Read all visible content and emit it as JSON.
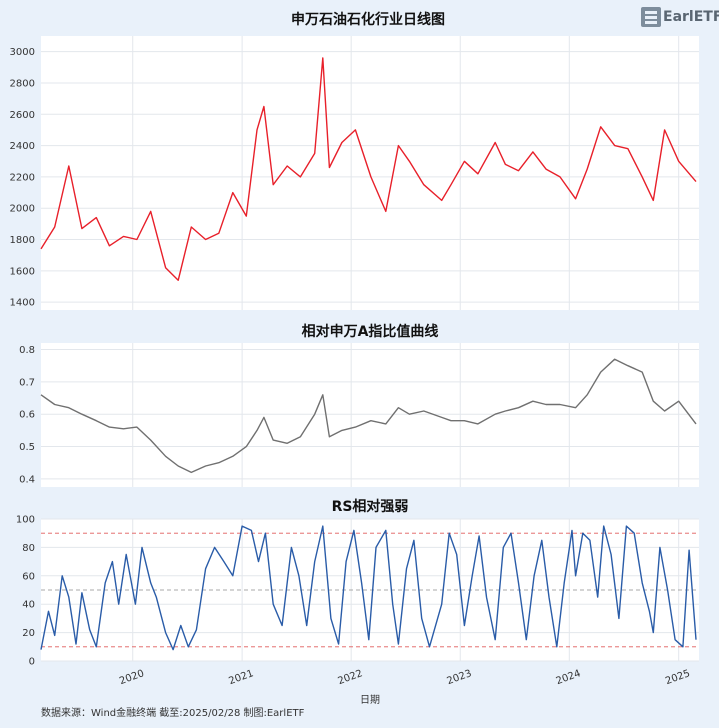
{
  "logo": {
    "text": "EarlETF",
    "sub": ""
  },
  "footer": {
    "source": "数据来源：Wind金融终端 截至:2025/02/28 制图:EarlETF"
  },
  "chart_data": [
    {
      "type": "line",
      "title": "申万石油石化行业日线图",
      "ylim": [
        1350,
        3100
      ],
      "yticks": [
        1400,
        1600,
        1800,
        2000,
        2200,
        2400,
        2600,
        2800,
        3000
      ],
      "color": "#e8202a",
      "grid": true,
      "series": [
        {
          "x": [
            "2019-02-28",
            "2019-04-15",
            "2019-06-01",
            "2019-07-15",
            "2019-09-01",
            "2019-10-15",
            "2019-12-01",
            "2020-01-15",
            "2020-03-01",
            "2020-04-20",
            "2020-06-01",
            "2020-07-15",
            "2020-09-01",
            "2020-10-15",
            "2020-12-01",
            "2021-01-15",
            "2021-02-20",
            "2021-03-15",
            "2021-04-15",
            "2021-06-01",
            "2021-07-15",
            "2021-09-01",
            "2021-09-28",
            "2021-10-20",
            "2021-12-01",
            "2022-01-15",
            "2022-03-08",
            "2022-04-27",
            "2022-06-08",
            "2022-07-15",
            "2022-09-01",
            "2022-10-31",
            "2022-12-01",
            "2023-01-15",
            "2023-03-01",
            "2023-04-28",
            "2023-06-01",
            "2023-07-15",
            "2023-09-01",
            "2023-10-15",
            "2023-12-01",
            "2024-01-22",
            "2024-03-01",
            "2024-04-15",
            "2024-06-01",
            "2024-07-15",
            "2024-09-01",
            "2024-10-08",
            "2024-11-15",
            "2025-01-01",
            "2025-02-28"
          ],
          "y": [
            1740,
            1880,
            2270,
            1870,
            1940,
            1760,
            1820,
            1800,
            1980,
            1620,
            1540,
            1880,
            1800,
            1840,
            2100,
            1950,
            2500,
            2650,
            2150,
            2270,
            2200,
            2350,
            2960,
            2260,
            2420,
            2500,
            2200,
            1980,
            2400,
            2300,
            2150,
            2050,
            2150,
            2300,
            2220,
            2420,
            2280,
            2240,
            2360,
            2250,
            2200,
            2060,
            2250,
            2520,
            2400,
            2380,
            2200,
            2050,
            2500,
            2300,
            2170
          ]
        }
      ]
    },
    {
      "type": "line",
      "title": "相对申万A指比值曲线",
      "ylim": [
        0.375,
        0.82
      ],
      "yticks": [
        0.4,
        0.5,
        0.6,
        0.7,
        0.8
      ],
      "color": "#707070",
      "grid": true,
      "series": [
        {
          "x": [
            "2019-02-28",
            "2019-04-15",
            "2019-06-01",
            "2019-07-15",
            "2019-09-01",
            "2019-10-15",
            "2019-12-01",
            "2020-01-15",
            "2020-03-01",
            "2020-04-20",
            "2020-06-01",
            "2020-07-15",
            "2020-09-01",
            "2020-10-15",
            "2020-12-01",
            "2021-01-15",
            "2021-02-20",
            "2021-03-15",
            "2021-04-15",
            "2021-06-01",
            "2021-07-15",
            "2021-09-01",
            "2021-09-28",
            "2021-10-20",
            "2021-12-01",
            "2022-01-15",
            "2022-03-08",
            "2022-04-27",
            "2022-06-08",
            "2022-07-15",
            "2022-09-01",
            "2022-10-31",
            "2022-12-01",
            "2023-01-15",
            "2023-03-01",
            "2023-04-28",
            "2023-06-01",
            "2023-07-15",
            "2023-09-01",
            "2023-10-15",
            "2023-12-01",
            "2024-01-22",
            "2024-03-01",
            "2024-04-15",
            "2024-06-01",
            "2024-07-15",
            "2024-09-01",
            "2024-10-08",
            "2024-11-15",
            "2025-01-01",
            "2025-02-28"
          ],
          "y": [
            0.66,
            0.63,
            0.62,
            0.6,
            0.58,
            0.56,
            0.555,
            0.56,
            0.52,
            0.47,
            0.44,
            0.42,
            0.44,
            0.45,
            0.47,
            0.5,
            0.55,
            0.59,
            0.52,
            0.51,
            0.53,
            0.6,
            0.66,
            0.53,
            0.55,
            0.56,
            0.58,
            0.57,
            0.62,
            0.6,
            0.61,
            0.59,
            0.58,
            0.58,
            0.57,
            0.6,
            0.61,
            0.62,
            0.64,
            0.63,
            0.63,
            0.62,
            0.66,
            0.73,
            0.77,
            0.75,
            0.73,
            0.64,
            0.61,
            0.64,
            0.57
          ]
        }
      ]
    },
    {
      "type": "line",
      "title": "RS相对强弱",
      "xlabel": "日期",
      "ylim": [
        0,
        100
      ],
      "yticks": [
        0,
        20,
        40,
        60,
        80,
        100
      ],
      "reference_lines": [
        90,
        50,
        10
      ],
      "color": "#2a5ca8",
      "grid": true,
      "series": [
        {
          "x": [
            "2019-02-28",
            "2019-03-25",
            "2019-04-15",
            "2019-05-10",
            "2019-06-01",
            "2019-06-25",
            "2019-07-15",
            "2019-08-10",
            "2019-09-01",
            "2019-10-01",
            "2019-10-25",
            "2019-11-15",
            "2019-12-10",
            "2020-01-10",
            "2020-02-01",
            "2020-03-01",
            "2020-03-20",
            "2020-04-20",
            "2020-05-15",
            "2020-06-10",
            "2020-07-05",
            "2020-08-01",
            "2020-09-01",
            "2020-10-01",
            "2020-11-01",
            "2020-12-01",
            "2021-01-01",
            "2021-02-01",
            "2021-02-25",
            "2021-03-20",
            "2021-04-15",
            "2021-05-15",
            "2021-06-15",
            "2021-07-10",
            "2021-08-05",
            "2021-09-01",
            "2021-09-28",
            "2021-10-25",
            "2021-11-20",
            "2021-12-15",
            "2022-01-10",
            "2022-02-05",
            "2022-03-01",
            "2022-03-25",
            "2022-04-27",
            "2022-05-20",
            "2022-06-08",
            "2022-07-05",
            "2022-07-30",
            "2022-08-25",
            "2022-09-20",
            "2022-10-31",
            "2022-11-25",
            "2022-12-20",
            "2023-01-15",
            "2023-02-10",
            "2023-03-05",
            "2023-03-30",
            "2023-04-28",
            "2023-05-25",
            "2023-06-20",
            "2023-07-15",
            "2023-08-10",
            "2023-09-05",
            "2023-10-01",
            "2023-10-25",
            "2023-11-20",
            "2023-12-15",
            "2024-01-10",
            "2024-01-22",
            "2024-02-15",
            "2024-03-10",
            "2024-04-05",
            "2024-04-25",
            "2024-05-20",
            "2024-06-15",
            "2024-07-10",
            "2024-08-05",
            "2024-09-01",
            "2024-09-25",
            "2024-10-08",
            "2024-10-30",
            "2024-11-25",
            "2024-12-20",
            "2025-01-15",
            "2025-02-05",
            "2025-02-28"
          ],
          "y": [
            8,
            35,
            18,
            60,
            45,
            12,
            48,
            22,
            10,
            55,
            70,
            40,
            75,
            40,
            80,
            55,
            45,
            20,
            8,
            25,
            10,
            22,
            65,
            80,
            70,
            60,
            95,
            92,
            70,
            90,
            40,
            25,
            80,
            60,
            25,
            70,
            95,
            30,
            12,
            70,
            92,
            55,
            15,
            80,
            92,
            40,
            12,
            65,
            85,
            30,
            10,
            40,
            90,
            75,
            25,
            60,
            88,
            45,
            15,
            80,
            90,
            55,
            15,
            60,
            85,
            45,
            10,
            55,
            92,
            60,
            90,
            85,
            45,
            95,
            75,
            30,
            95,
            90,
            55,
            35,
            20,
            80,
            50,
            15,
            10,
            78,
            15
          ]
        }
      ]
    }
  ],
  "x_axis": {
    "range": [
      "2019-02-28",
      "2025-03-10"
    ],
    "ticks": [
      "2020",
      "2021",
      "2022",
      "2023",
      "2024",
      "2025"
    ],
    "tick_dates": [
      "2020-01-01",
      "2021-01-01",
      "2022-01-01",
      "2023-01-01",
      "2024-01-01",
      "2025-01-01"
    ]
  }
}
